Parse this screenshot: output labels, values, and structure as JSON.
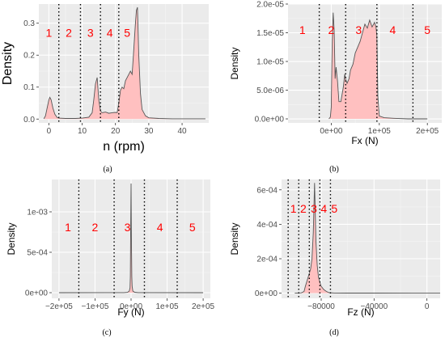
{
  "chart_data": [
    {
      "type": "area",
      "caption": "(a)",
      "xlabel": "n (rpm)",
      "ylabel": "Density",
      "xlim": [
        -3,
        48
      ],
      "ylim": [
        -0.012,
        0.36
      ],
      "xticks": [
        0,
        10,
        20,
        30,
        40
      ],
      "xtick_labels": [
        "0",
        "10",
        "20",
        "30",
        "40"
      ],
      "yticks": [
        0.0,
        0.1,
        0.2,
        0.3
      ],
      "ytick_labels": [
        "0.0",
        "0.1",
        "0.2",
        "0.3"
      ],
      "grid": true,
      "fill_color": "#ffc0c0",
      "line_color": "#555555",
      "dividers": [
        3,
        9.5,
        15.5,
        21
      ],
      "regions": [
        {
          "label": "1",
          "x": 0,
          "y": 0.27
        },
        {
          "label": "2",
          "x": 6,
          "y": 0.27
        },
        {
          "label": "3",
          "x": 12.5,
          "y": 0.27
        },
        {
          "label": "4",
          "x": 18.3,
          "y": 0.27
        },
        {
          "label": "5",
          "x": 23.5,
          "y": 0.27
        }
      ],
      "x": [
        -1.5,
        -1,
        -0.5,
        0,
        0.3,
        0.7,
        1.2,
        1.8,
        2.5,
        3,
        5,
        8,
        10,
        12,
        13,
        13.5,
        14,
        14.5,
        15,
        15.5,
        16,
        17,
        18,
        19,
        20,
        20.5,
        21,
        21.5,
        22,
        22.5,
        23,
        24,
        24.5,
        25,
        25.5,
        26,
        26.3,
        26.6,
        27,
        27.5,
        28,
        29,
        30,
        33,
        37,
        40,
        45,
        47
      ],
      "y": [
        0.001,
        0.01,
        0.035,
        0.06,
        0.068,
        0.06,
        0.035,
        0.015,
        0.005,
        0.003,
        0.002,
        0.002,
        0.003,
        0.006,
        0.02,
        0.06,
        0.11,
        0.13,
        0.06,
        0.025,
        0.02,
        0.022,
        0.018,
        0.02,
        0.021,
        0.02,
        0.05,
        0.09,
        0.1,
        0.095,
        0.12,
        0.14,
        0.15,
        0.14,
        0.22,
        0.3,
        0.34,
        0.35,
        0.2,
        0.08,
        0.03,
        0.01,
        0.004,
        0.002,
        0.001,
        0.001,
        0.001,
        0.001
      ]
    },
    {
      "type": "area",
      "caption": "(b)",
      "xlabel": "Fx (N)",
      "ylabel": "Density",
      "xlim": [
        -90000,
        230000
      ],
      "ylim": [
        -7e-07,
        2e-05
      ],
      "xticks": [
        0,
        100000,
        200000
      ],
      "xtick_labels": [
        "0e+00",
        "1e+05",
        "2e+05"
      ],
      "yticks": [
        0,
        5e-06,
        1e-05,
        1.5e-05,
        2e-05
      ],
      "ytick_labels": [
        "0.0e+00",
        "5.0e-06",
        "1.0e-05",
        "1.5e-05",
        "2.0e-05"
      ],
      "grid": true,
      "fill_color": "#ffc0c0",
      "line_color": "#555555",
      "dividers": [
        -25000,
        30000,
        95000,
        170000
      ],
      "regions": [
        {
          "label": "1",
          "x": -60000,
          "y": 1.55e-05
        },
        {
          "label": "2",
          "x": 0,
          "y": 1.55e-05
        },
        {
          "label": "3",
          "x": 57000,
          "y": 1.55e-05
        },
        {
          "label": "4",
          "x": 128000,
          "y": 1.55e-05
        },
        {
          "label": "5",
          "x": 200000,
          "y": 1.55e-05
        }
      ],
      "x": [
        -5000,
        -2000,
        0,
        2000,
        4000,
        6000,
        8000,
        10000,
        13000,
        16000,
        20000,
        25000,
        28000,
        30000,
        33000,
        37000,
        40000,
        45000,
        50000,
        55000,
        60000,
        65000,
        70000,
        75000,
        80000,
        85000,
        90000,
        93000,
        95000,
        97000,
        100000,
        110000,
        130000,
        160000,
        200000
      ],
      "y": [
        0,
        3e-07,
        2e-06,
        1.35e-05,
        1.85e-05,
        1.55e-05,
        7e-06,
        9e-06,
        6.5e-06,
        3e-06,
        3e-06,
        5.5e-06,
        7.8e-06,
        6.8e-06,
        6.2e-06,
        7e-06,
        8.5e-06,
        9.5e-06,
        1.15e-05,
        1.25e-05,
        1.35e-05,
        1.5e-05,
        1.65e-05,
        1.58e-05,
        1.72e-05,
        1.6e-05,
        1.68e-05,
        1.6e-05,
        1.45e-05,
        4e-06,
        5e-07,
        2e-07,
        1e-07,
        0,
        0
      ]
    },
    {
      "type": "area",
      "caption": "(c)",
      "xlabel": "Fy (N)",
      "ylabel": "Density",
      "xlim": [
        -220000,
        220000
      ],
      "ylim": [
        -7e-05,
        0.0014
      ],
      "xticks": [
        -200000,
        -100000,
        0,
        100000,
        200000
      ],
      "xtick_labels": [
        "−2e+05",
        "−1e+05",
        "0e+00",
        "1e+05",
        "2e+05"
      ],
      "yticks": [
        0,
        0.0005,
        0.001
      ],
      "ytick_labels": [
        "0e+00",
        "5e-04",
        "1e-03"
      ],
      "grid": true,
      "fill_color": "#ffc0c0",
      "line_color": "#555555",
      "dividers": [
        -145000,
        -47000,
        37000,
        128000
      ],
      "regions": [
        {
          "label": "1",
          "x": -175000,
          "y": 0.00081
        },
        {
          "label": "2",
          "x": -100000,
          "y": 0.00081
        },
        {
          "label": "3",
          "x": -10000,
          "y": 0.00081
        },
        {
          "label": "4",
          "x": 80000,
          "y": 0.00081
        },
        {
          "label": "5",
          "x": 170000,
          "y": 0.00081
        }
      ],
      "x": [
        -200000,
        -20000,
        -10000,
        -5000,
        -3000,
        -2000,
        -1000,
        0,
        1000,
        2000,
        3000,
        5000,
        10000,
        20000,
        200000
      ],
      "y": [
        0,
        1e-06,
        4e-06,
        2e-05,
        6e-05,
        0.0002,
        0.0009,
        0.00135,
        0.0007,
        0.0002,
        8e-05,
        2e-05,
        5e-06,
        1e-06,
        0
      ]
    },
    {
      "type": "area",
      "caption": "(d)",
      "xlabel": "Fz (N)",
      "ylabel": "Density",
      "xlim": [
        -110000,
        10000
      ],
      "ylim": [
        -3e-05,
        0.00066
      ],
      "xticks": [
        -80000,
        -40000,
        0
      ],
      "xtick_labels": [
        "−80000",
        "−40000",
        "0"
      ],
      "yticks": [
        0,
        0.0002,
        0.0004,
        0.0006
      ],
      "ytick_labels": [
        "0e+00",
        "2e-04",
        "4e-04",
        "6e-04"
      ],
      "grid": true,
      "fill_color": "#ffc0c0",
      "line_color": "#555555",
      "dividers": [
        -105000,
        -97000,
        -89000,
        -81000,
        -73000
      ],
      "regions": [
        {
          "label": "1",
          "x": -101000,
          "y": 0.00049
        },
        {
          "label": "2",
          "x": -93500,
          "y": 0.00049
        },
        {
          "label": "3",
          "x": -85500,
          "y": 0.00049
        },
        {
          "label": "4",
          "x": -78000,
          "y": 0.00049
        },
        {
          "label": "5",
          "x": -70000,
          "y": 0.00049
        }
      ],
      "x": [
        -100000,
        -95000,
        -93000,
        -92000,
        -90000,
        -88000,
        -87000,
        -86000,
        -85000,
        -84000,
        -83000,
        -82000,
        -80000,
        -78000,
        -76000,
        -74000,
        -70000,
        -60000,
        -40000,
        -10000,
        10000
      ],
      "y": [
        0,
        2e-06,
        1e-05,
        4e-05,
        9e-05,
        0.00014,
        0.0002,
        0.00035,
        0.00064,
        0.0003,
        0.00016,
        9e-05,
        4e-05,
        2e-05,
        1e-05,
        3e-06,
        1e-06,
        5e-07,
        3e-07,
        1e-07,
        0
      ]
    }
  ]
}
